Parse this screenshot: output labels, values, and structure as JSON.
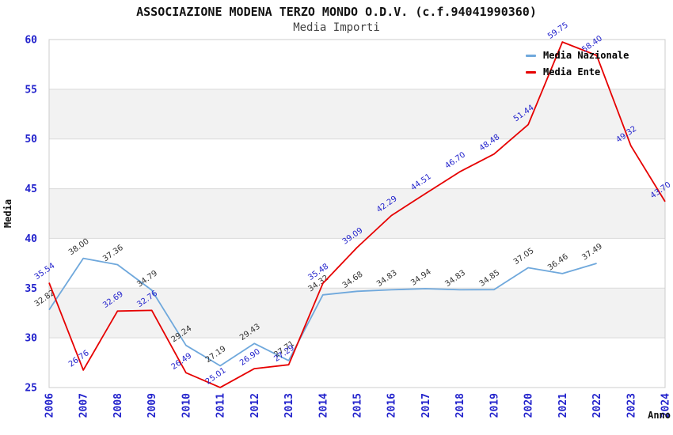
{
  "chart_data": {
    "type": "line",
    "title": "ASSOCIAZIONE MODENA TERZO MONDO O.D.V. (c.f.94041990360)",
    "subtitle": "Media Importi",
    "xlabel": "Anno",
    "ylabel": "Media",
    "ylim": [
      25,
      60
    ],
    "yticks": [
      25,
      30,
      35,
      40,
      45,
      50,
      55,
      60
    ],
    "grid": "horizontal-bands-alternating",
    "legend_position": "top-right",
    "categories": [
      "2006",
      "2007",
      "2008",
      "2009",
      "2010",
      "2011",
      "2012",
      "2013",
      "2014",
      "2015",
      "2016",
      "2017",
      "2018",
      "2019",
      "2020",
      "2021",
      "2022",
      "2023",
      "2024"
    ],
    "series": [
      {
        "name": "Media Nazionale",
        "color": "#6fa8dc",
        "label_color": "#333333",
        "values": [
          32.82,
          38.0,
          37.36,
          34.79,
          29.24,
          27.19,
          29.43,
          27.71,
          34.32,
          34.68,
          34.83,
          34.94,
          34.83,
          34.85,
          37.05,
          36.46,
          37.49,
          null,
          null
        ]
      },
      {
        "name": "Media Ente",
        "color": "#e60000",
        "label_color": "#2222cc",
        "values": [
          35.54,
          26.76,
          32.69,
          32.76,
          26.49,
          25.01,
          26.9,
          27.29,
          35.48,
          39.09,
          42.29,
          44.51,
          46.7,
          48.48,
          51.44,
          59.75,
          58.4,
          49.32,
          43.7
        ]
      }
    ],
    "style": {
      "band_color": "#f2f2f2",
      "grid_color": "#d9d9d9",
      "border_color": "#cccccc",
      "tick_color": "#2222cc",
      "axis_title_color": "#111111"
    }
  }
}
